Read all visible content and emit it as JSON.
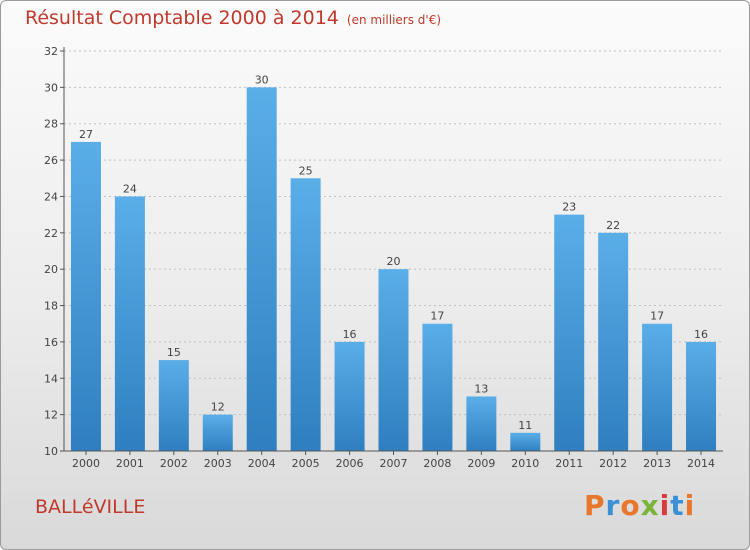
{
  "header": {
    "title": "Résultat Comptable 2000 à 2014",
    "unit": "(en milliers d'€)"
  },
  "commune": "BALLéVILLE",
  "logo": {
    "text": "Proxiti",
    "colors": [
      "#e8762b",
      "#3a8fd6",
      "#e8762b",
      "#7cb33b",
      "#d63a3a",
      "#3a8fd6",
      "#e8762b"
    ]
  },
  "colors": {
    "bar_top": "#5aaee8",
    "bar_bottom": "#2f7fc0",
    "axis": "#555555",
    "grid": "#bfbfbf"
  },
  "chart_data": {
    "type": "bar",
    "title": "Résultat Comptable 2000 à 2014",
    "subtitle": "(en milliers d'€)",
    "categories": [
      "2000",
      "2001",
      "2002",
      "2003",
      "2004",
      "2005",
      "2006",
      "2007",
      "2008",
      "2009",
      "2010",
      "2011",
      "2012",
      "2013",
      "2014"
    ],
    "values": [
      27,
      24,
      15,
      12,
      30,
      25,
      16,
      20,
      17,
      13,
      11,
      23,
      22,
      17,
      16
    ],
    "ylim": [
      10,
      32
    ],
    "yticks": [
      10,
      12,
      14,
      16,
      18,
      20,
      22,
      24,
      26,
      28,
      30,
      32
    ],
    "xlabel": "",
    "ylabel": "",
    "grid": true
  }
}
